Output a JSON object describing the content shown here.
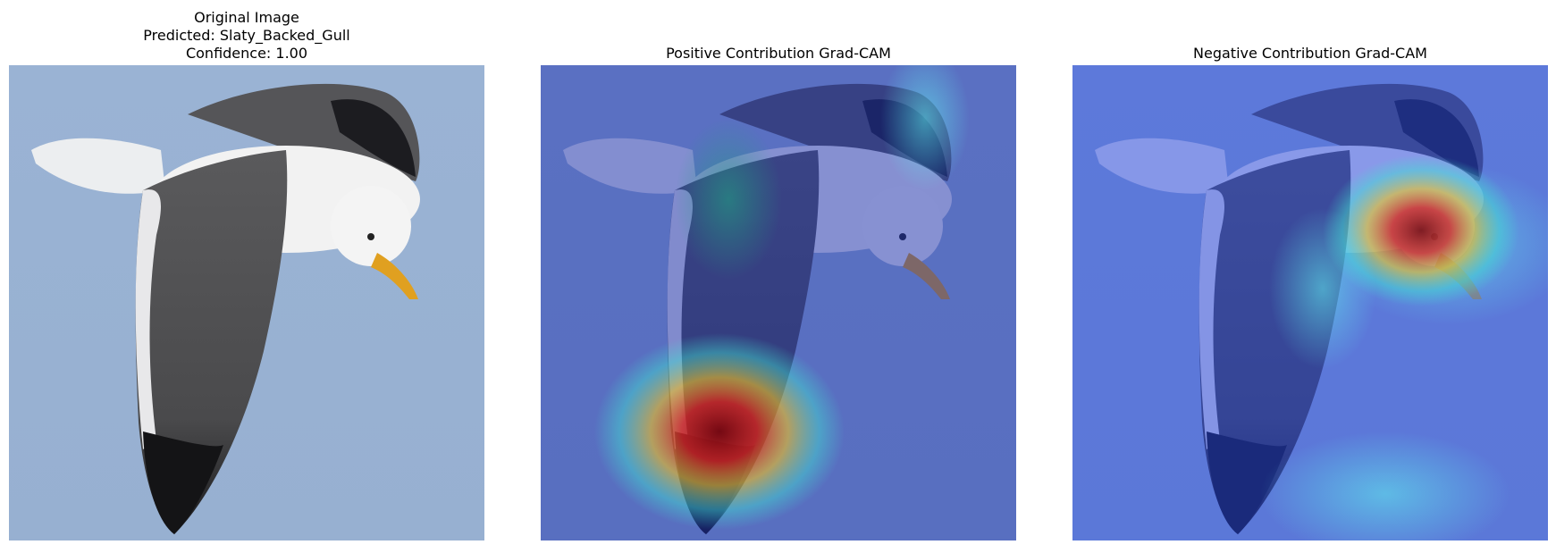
{
  "panels": [
    {
      "title_lines": [
        "Original Image",
        "Predicted: Slaty_Backed_Gull",
        "Confidence: 1.00"
      ]
    },
    {
      "title_lines": [
        "Positive Contribution Grad-CAM"
      ]
    },
    {
      "title_lines": [
        "Negative Contribution Grad-CAM"
      ]
    }
  ]
}
